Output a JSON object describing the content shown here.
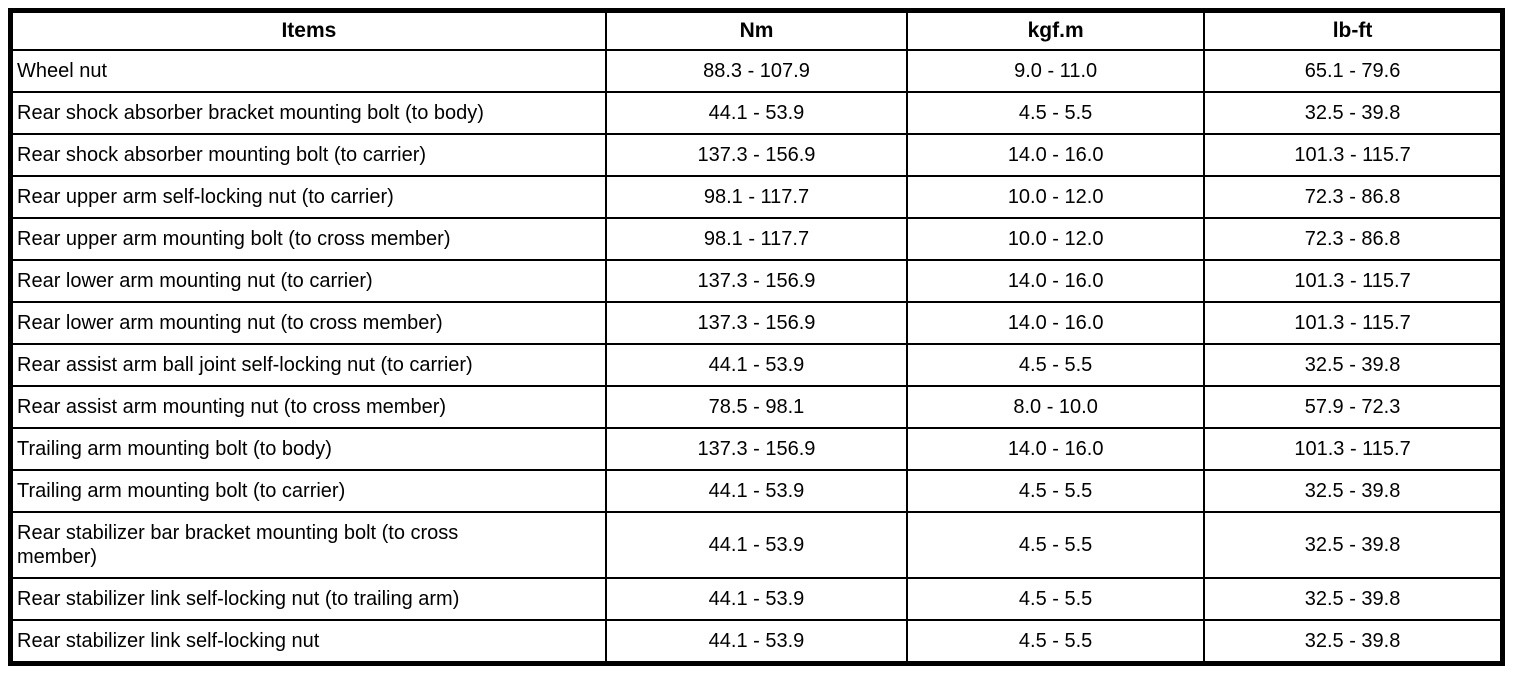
{
  "table": {
    "headers": [
      "Items",
      "Nm",
      "kgf.m",
      "lb-ft"
    ],
    "rows": [
      [
        "Wheel nut",
        "88.3 - 107.9",
        "9.0 - 11.0",
        "65.1 - 79.6"
      ],
      [
        "Rear shock absorber bracket mounting bolt (to body)",
        "44.1 - 53.9",
        "4.5 - 5.5",
        "32.5 - 39.8"
      ],
      [
        "Rear shock absorber mounting bolt (to carrier)",
        "137.3 - 156.9",
        "14.0 - 16.0",
        "101.3 - 115.7"
      ],
      [
        "Rear upper arm self-locking nut (to carrier)",
        "98.1 - 117.7",
        "10.0 - 12.0",
        "72.3 - 86.8"
      ],
      [
        "Rear upper arm mounting bolt (to cross member)",
        "98.1 - 117.7",
        "10.0 - 12.0",
        "72.3 - 86.8"
      ],
      [
        "Rear lower arm mounting nut (to carrier)",
        "137.3 - 156.9",
        "14.0 - 16.0",
        "101.3 - 115.7"
      ],
      [
        "Rear lower arm mounting nut (to cross member)",
        "137.3 - 156.9",
        "14.0 - 16.0",
        "101.3 - 115.7"
      ],
      [
        "Rear assist arm ball joint self-locking nut (to carrier)",
        "44.1 - 53.9",
        "4.5 - 5.5",
        "32.5 - 39.8"
      ],
      [
        "Rear assist arm mounting nut (to cross member)",
        "78.5 - 98.1",
        "8.0 - 10.0",
        "57.9 - 72.3"
      ],
      [
        "Trailing arm mounting bolt (to body)",
        "137.3 - 156.9",
        "14.0 - 16.0",
        "101.3 - 115.7"
      ],
      [
        "Trailing arm mounting bolt (to carrier)",
        "44.1 - 53.9",
        "4.5 - 5.5",
        "32.5 - 39.8"
      ],
      [
        "Rear stabilizer bar bracket mounting bolt (to cross\nmember)",
        "44.1 - 53.9",
        "4.5 - 5.5",
        "32.5 - 39.8"
      ],
      [
        "Rear stabilizer link self-locking nut (to trailing arm)",
        "44.1 - 53.9",
        "4.5 - 5.5",
        "32.5 - 39.8"
      ],
      [
        "Rear stabilizer link self-locking nut",
        "44.1 - 53.9",
        "4.5 - 5.5",
        "32.5 - 39.8"
      ]
    ]
  }
}
